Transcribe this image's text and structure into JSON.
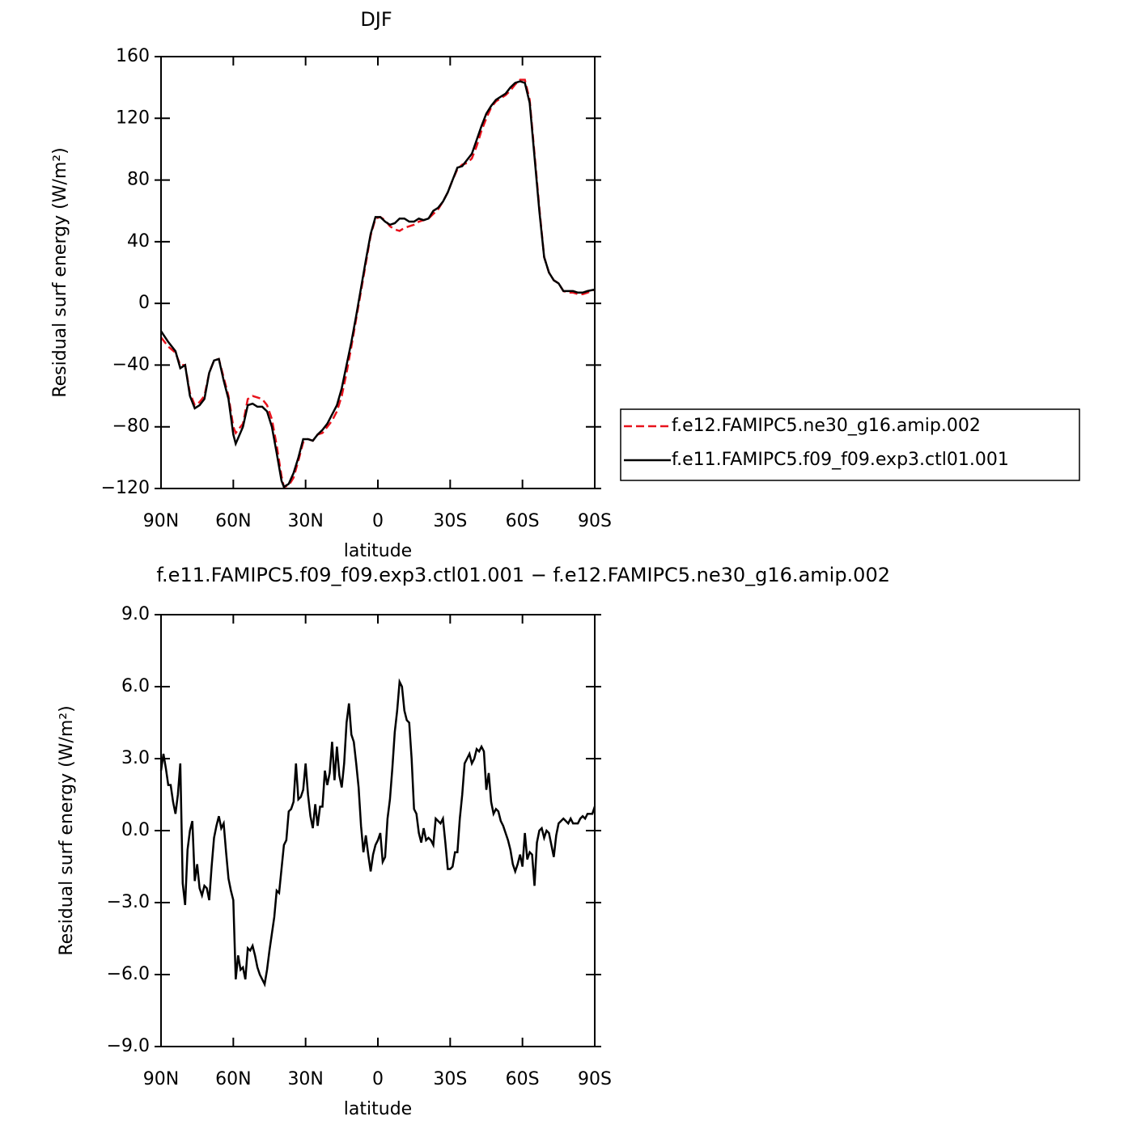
{
  "chart_data": [
    {
      "type": "line",
      "title": "DJF",
      "xlabel": "latitude",
      "ylabel": "Residual surf energy (W/m²)",
      "x": [
        90,
        87,
        84,
        82,
        80,
        78,
        76,
        74,
        72,
        70,
        68,
        66,
        64,
        62,
        60,
        59,
        56,
        54,
        52,
        50,
        48,
        46,
        44,
        42,
        40,
        39,
        37,
        35,
        33,
        31,
        29,
        27,
        25,
        23,
        21,
        19,
        17,
        15,
        13,
        11,
        9,
        7,
        5,
        3,
        1,
        -1,
        -3,
        -5,
        -7,
        -9,
        -11,
        -13,
        -15,
        -17,
        -19,
        -21,
        -23,
        -25,
        -27,
        -29,
        -31,
        -33,
        -35,
        -37,
        -39,
        -41,
        -43,
        -45,
        -47,
        -49,
        -51,
        -53,
        -55,
        -57,
        -59,
        -61,
        -63,
        -65,
        -67,
        -69,
        -71,
        -73,
        -75,
        -77,
        -79,
        -81,
        -83,
        -85,
        -87,
        -90
      ],
      "series": [
        {
          "name": "f.e12.FAMIPC5.ne30_g16.amip.002",
          "color": "#e8121c",
          "style": "dashed",
          "values": [
            -22,
            -28,
            -32,
            -40,
            -40,
            -58,
            -66,
            -64,
            -60,
            -45,
            -37,
            -36,
            -48,
            -60,
            -80,
            -84,
            -78,
            -62,
            -60,
            -61,
            -62,
            -66,
            -75,
            -92,
            -112,
            -119,
            -118,
            -113,
            -102,
            -90,
            -88,
            -89,
            -85,
            -84,
            -80,
            -76,
            -70,
            -60,
            -45,
            -28,
            -10,
            8,
            26,
            44,
            55,
            56,
            54,
            50,
            48,
            47,
            49,
            50,
            51,
            53,
            54,
            55,
            58,
            61,
            66,
            72,
            80,
            87,
            90,
            91,
            94,
            102,
            112,
            120,
            127,
            131,
            133,
            135,
            138,
            142,
            145,
            145,
            132,
            97,
            62,
            30,
            20,
            15,
            13,
            8,
            7,
            7,
            6,
            6,
            7,
            9
          ]
        },
        {
          "name": "f.e11.FAMIPC5.f09_f09.exp3.ctl01.001",
          "color": "#000000",
          "style": "solid",
          "values": [
            -18,
            -25,
            -31,
            -42,
            -40,
            -60,
            -68,
            -66,
            -62,
            -45,
            -37,
            -36,
            -50,
            -62,
            -85,
            -91,
            -80,
            -66,
            -65,
            -67,
            -67,
            -70,
            -80,
            -97,
            -115,
            -119,
            -117,
            -110,
            -100,
            -88,
            -88,
            -89,
            -85,
            -82,
            -78,
            -72,
            -66,
            -55,
            -40,
            -25,
            -8,
            10,
            28,
            45,
            56,
            56,
            53,
            51,
            52,
            55,
            55,
            53,
            53,
            55,
            54,
            55,
            60,
            62,
            66,
            72,
            80,
            88,
            89,
            93,
            97,
            106,
            115,
            123,
            128,
            132,
            134,
            136,
            140,
            143,
            144,
            143,
            130,
            95,
            60,
            30,
            20,
            15,
            13,
            8,
            8,
            8,
            7,
            7,
            8,
            9
          ]
        }
      ],
      "xlim": [
        90,
        -90
      ],
      "xticks": [
        {
          "value": 90,
          "label": "90N"
        },
        {
          "value": 60,
          "label": "60N"
        },
        {
          "value": 30,
          "label": "30N"
        },
        0,
        {
          "value": -30,
          "label": "30S"
        },
        {
          "value": -60,
          "label": "60S"
        },
        {
          "value": -90,
          "label": "90S"
        }
      ],
      "ylim": [
        -120,
        160
      ],
      "yticks": [
        160,
        120,
        80,
        40,
        0,
        {
          "value": -40,
          "label": "−40"
        },
        {
          "value": -80,
          "label": "−80"
        },
        {
          "value": -120,
          "label": "−120"
        }
      ],
      "legend": "right"
    },
    {
      "type": "line",
      "title": "f.e11.FAMIPC5.f09_f09.exp3.ctl01.001 − f.e12.FAMIPC5.ne30_g16.amip.002",
      "xlabel": "latitude",
      "ylabel": "Residual surf energy (W/m²)",
      "x": [
        90,
        89,
        88,
        87,
        86,
        85,
        84,
        83,
        82,
        81,
        80,
        79,
        78,
        77,
        76,
        75,
        74,
        73,
        72,
        71,
        70,
        69,
        68,
        67,
        66,
        65,
        64,
        63,
        62,
        61,
        60,
        59,
        58,
        57,
        56,
        55,
        54,
        53,
        52,
        51,
        50,
        49,
        48,
        47,
        46,
        45,
        44,
        43,
        42,
        41,
        40,
        39,
        38,
        37,
        36,
        35,
        34,
        33,
        32,
        31,
        30,
        29,
        28,
        27,
        26,
        25,
        24,
        23,
        22,
        21,
        20,
        19,
        18,
        17,
        16,
        15,
        14,
        13,
        12,
        11,
        10,
        9,
        8,
        7,
        6,
        5,
        4,
        3,
        2,
        1,
        0,
        -1,
        -2,
        -3,
        -4,
        -5,
        -6,
        -7,
        -8,
        -9,
        -10,
        -11,
        -12,
        -13,
        -14,
        -15,
        -16,
        -17,
        -18,
        -19,
        -20,
        -21,
        -22,
        -23,
        -24,
        -25,
        -26,
        -27,
        -28,
        -29,
        -30,
        -31,
        -32,
        -33,
        -34,
        -35,
        -36,
        -37,
        -38,
        -39,
        -40,
        -41,
        -42,
        -43,
        -44,
        -45,
        -46,
        -47,
        -48,
        -49,
        -50,
        -51,
        -52,
        -53,
        -54,
        -55,
        -56,
        -57,
        -58,
        -59,
        -60,
        -61,
        -62,
        -63,
        -64,
        -65,
        -66,
        -67,
        -68,
        -69,
        -70,
        -71,
        -72,
        -73,
        -74,
        -75,
        -76,
        -77,
        -78,
        -79,
        -80,
        -81,
        -82,
        -83,
        -84,
        -85,
        -86,
        -87,
        -88,
        -89,
        -90
      ],
      "color": "#000000",
      "values": [
        2.5,
        3.2,
        2.6,
        1.9,
        1.9,
        1.2,
        0.7,
        1.5,
        2.8,
        -2.2,
        -3.1,
        -0.8,
        0,
        0.4,
        -2.1,
        -1.4,
        -2.4,
        -2.7,
        -2.3,
        -2.4,
        -2.9,
        -1.5,
        -0.3,
        0.2,
        0.6,
        0.1,
        0.3,
        -0.9,
        -2.0,
        -2.5,
        -2.9,
        -6.2,
        -5.2,
        -5.8,
        -5.7,
        -6.2,
        -4.9,
        -5.0,
        -4.8,
        -5.2,
        -5.7,
        -6.0,
        -6.2,
        -6.4,
        -5.8,
        -5.0,
        -4.3,
        -3.6,
        -2.5,
        -2.6,
        -1.6,
        -0.6,
        -0.4,
        0.8,
        0.9,
        1.2,
        2.8,
        1.3,
        1.4,
        1.7,
        2.8,
        1.5,
        0.6,
        0.1,
        1.1,
        0.2,
        1.0,
        1.0,
        2.5,
        1.9,
        2.4,
        3.7,
        2.1,
        3.5,
        2.3,
        1.8,
        2.8,
        4.5,
        5.3,
        4.0,
        3.7,
        2.8,
        1.8,
        0.2,
        -0.9,
        -0.2,
        -1.0,
        -1.7,
        -1.0,
        -0.6,
        -0.4,
        -0.1,
        -1.3,
        -1.1,
        0.5,
        1.3,
        2.6,
        4.1,
        5.0,
        6.2,
        6.0,
        5.0,
        4.6,
        4.5,
        3.0,
        0.9,
        0.7,
        -0.1,
        -0.5,
        0.1,
        -0.4,
        -0.3,
        -0.4,
        -0.6,
        0.5,
        0.4,
        0.3,
        0.5,
        -0.5,
        -1.6,
        -1.6,
        -1.5,
        -0.9,
        -0.9,
        0.5,
        1.5,
        2.8,
        3.0,
        3.2,
        2.8,
        3.0,
        3.4,
        3.3,
        3.5,
        3.3,
        1.7,
        2.4,
        1.2,
        0.7,
        0.9,
        0.8,
        0.4,
        0.2,
        -0.1,
        -0.4,
        -0.8,
        -1.4,
        -1.7,
        -1.4,
        -1.0,
        -1.5,
        -0.1,
        -1.2,
        -0.9,
        -1.0,
        -2.3,
        -0.5,
        0,
        0.1,
        -0.3,
        0,
        -0.1,
        -0.6,
        -1.1,
        -0.2,
        0.3,
        0.4,
        0.5,
        0.4,
        0.3,
        0.5,
        0.3,
        0.3,
        0.3,
        0.5,
        0.6,
        0.5,
        0.7,
        0.7,
        0.7,
        1.0
      ],
      "xlim": [
        90,
        -90
      ],
      "xticks": [
        {
          "value": 90,
          "label": "90N"
        },
        {
          "value": 60,
          "label": "60N"
        },
        {
          "value": 30,
          "label": "30N"
        },
        0,
        {
          "value": -30,
          "label": "30S"
        },
        {
          "value": -60,
          "label": "60S"
        },
        {
          "value": -90,
          "label": "90S"
        }
      ],
      "ylim": [
        -9,
        9
      ],
      "yticks": [
        {
          "value": 9,
          "label": "9.0"
        },
        {
          "value": 6,
          "label": "6.0"
        },
        {
          "value": 3,
          "label": "3.0"
        },
        {
          "value": 0,
          "label": "0.0"
        },
        {
          "value": -3,
          "label": "−3.0"
        },
        {
          "value": -6,
          "label": "−6.0"
        },
        {
          "value": -9,
          "label": "−9.0"
        }
      ]
    }
  ]
}
